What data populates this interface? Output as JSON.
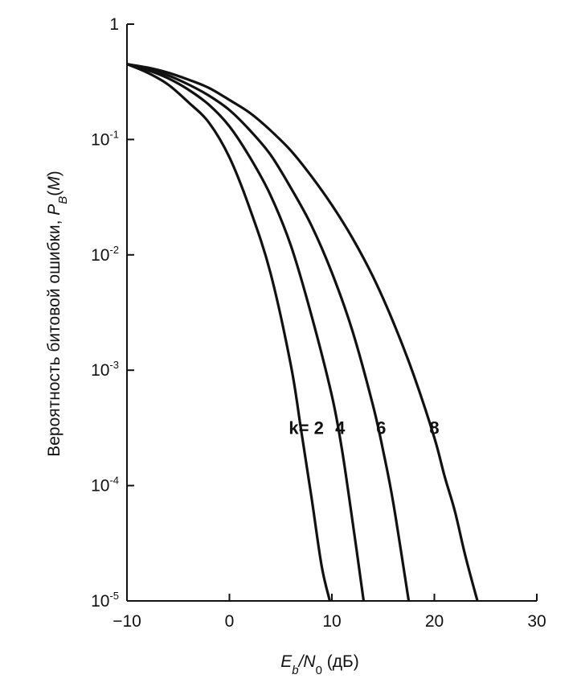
{
  "chart_data": {
    "type": "line",
    "xlabel": "Eb/N0 (дБ)",
    "ylabel": "Вероятность битовой ошибки, PB(M)",
    "xlim": [
      -10,
      30
    ],
    "ylim": [
      1e-05,
      1
    ],
    "yscale": "log",
    "x_ticks": [
      -10,
      0,
      10,
      20,
      30
    ],
    "x_tick_labels": [
      "−10",
      "0",
      "10",
      "20",
      "30"
    ],
    "y_ticks": [
      {
        "value": 1,
        "base": "1",
        "exp": ""
      },
      {
        "value": 0.1,
        "base": "10",
        "exp": "-1"
      },
      {
        "value": 0.01,
        "base": "10",
        "exp": "-2"
      },
      {
        "value": 0.001,
        "base": "10",
        "exp": "-3"
      },
      {
        "value": 0.0001,
        "base": "10",
        "exp": "-4"
      },
      {
        "value": 1e-05,
        "base": "10",
        "exp": "-5"
      }
    ],
    "grid": false,
    "series": [
      {
        "name": "k= 2",
        "x": [
          -10,
          -8,
          -6,
          -4,
          -2,
          0,
          2,
          4,
          6,
          7,
          8,
          9,
          9.8
        ],
        "y": [
          0.45,
          0.38,
          0.3,
          0.21,
          0.14,
          0.07,
          0.025,
          0.007,
          0.0011,
          0.0003,
          8e-05,
          2e-05,
          1e-05
        ]
      },
      {
        "name": "4",
        "x": [
          -10,
          -8,
          -6,
          -4,
          -2,
          0,
          2,
          4,
          6,
          8,
          10,
          11,
          12,
          13.1
        ],
        "y": [
          0.45,
          0.4,
          0.34,
          0.27,
          0.2,
          0.13,
          0.07,
          0.033,
          0.012,
          0.003,
          0.0006,
          0.0002,
          5e-05,
          1e-05
        ]
      },
      {
        "name": "6",
        "x": [
          -10,
          -8,
          -6,
          -4,
          -2,
          0,
          2,
          4,
          6,
          8,
          10,
          12,
          14,
          15,
          16,
          17.5
        ],
        "y": [
          0.45,
          0.41,
          0.36,
          0.3,
          0.24,
          0.18,
          0.12,
          0.074,
          0.038,
          0.018,
          0.007,
          0.0022,
          0.0005,
          0.0002,
          7e-05,
          1e-05
        ]
      },
      {
        "name": "8",
        "x": [
          -10,
          -8,
          -6,
          -4,
          -2,
          0,
          2,
          4,
          6,
          8,
          10,
          12,
          14,
          16,
          18,
          20,
          21,
          22,
          23,
          24.2
        ],
        "y": [
          0.45,
          0.42,
          0.38,
          0.33,
          0.28,
          0.22,
          0.17,
          0.12,
          0.08,
          0.048,
          0.027,
          0.014,
          0.0065,
          0.0026,
          0.0009,
          0.00026,
          0.00012,
          6e-05,
          2.5e-05,
          1e-05
        ]
      }
    ],
    "series_labels": [
      {
        "text": "k= 2",
        "x": 7.5,
        "y": 0.00028
      },
      {
        "text": "4",
        "x": 10.8,
        "y": 0.00028
      },
      {
        "text": "6",
        "x": 14.8,
        "y": 0.00028
      },
      {
        "text": "8",
        "x": 20,
        "y": 0.00028
      }
    ]
  }
}
